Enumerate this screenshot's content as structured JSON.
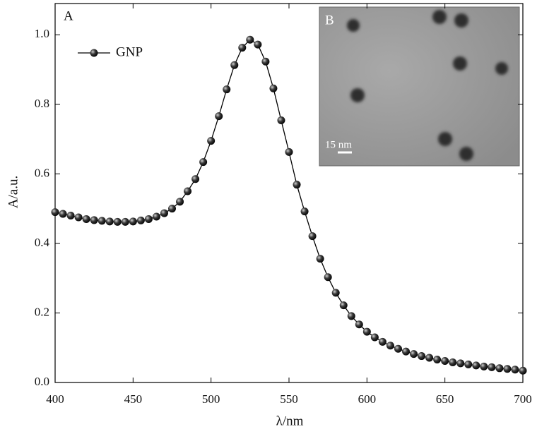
{
  "chart_data": {
    "type": "line",
    "x_label": "λ/nm",
    "y_label": "A/a.u.",
    "panel_labels": [
      "A",
      "B"
    ],
    "scale_bar": "15 nm",
    "x": [
      400,
      405,
      410,
      415,
      420,
      425,
      430,
      435,
      440,
      445,
      450,
      455,
      460,
      465,
      470,
      475,
      480,
      485,
      490,
      495,
      500,
      505,
      510,
      515,
      520,
      525,
      530,
      535,
      540,
      545,
      550,
      555,
      560,
      565,
      570,
      575,
      580,
      585,
      590,
      595,
      600,
      605,
      610,
      615,
      620,
      625,
      630,
      635,
      640,
      645,
      650,
      655,
      660,
      665,
      670,
      675,
      680,
      685,
      690,
      695,
      700
    ],
    "series": [
      {
        "name": "GNP",
        "color": "#000000",
        "values": [
          0.49,
          0.485,
          0.48,
          0.475,
          0.47,
          0.467,
          0.465,
          0.463,
          0.462,
          0.462,
          0.463,
          0.466,
          0.47,
          0.477,
          0.487,
          0.5,
          0.52,
          0.55,
          0.585,
          0.634,
          0.695,
          0.766,
          0.843,
          0.913,
          0.963,
          0.986,
          0.972,
          0.923,
          0.846,
          0.754,
          0.663,
          0.569,
          0.492,
          0.421,
          0.356,
          0.303,
          0.258,
          0.222,
          0.191,
          0.167,
          0.146,
          0.13,
          0.117,
          0.106,
          0.097,
          0.089,
          0.082,
          0.076,
          0.071,
          0.066,
          0.062,
          0.058,
          0.055,
          0.052,
          0.049,
          0.046,
          0.044,
          0.041,
          0.039,
          0.037,
          0.034
        ]
      }
    ],
    "xlim": [
      400,
      700
    ],
    "ylim": [
      0,
      1.09
    ],
    "xticks": [
      400,
      450,
      500,
      550,
      600,
      650,
      700
    ],
    "yticks": [
      {
        "value": 0,
        "label": "0.0"
      },
      0.2,
      0.4,
      0.6,
      0.8,
      {
        "value": 1,
        "label": "1.0"
      }
    ],
    "legend": "upper left"
  }
}
